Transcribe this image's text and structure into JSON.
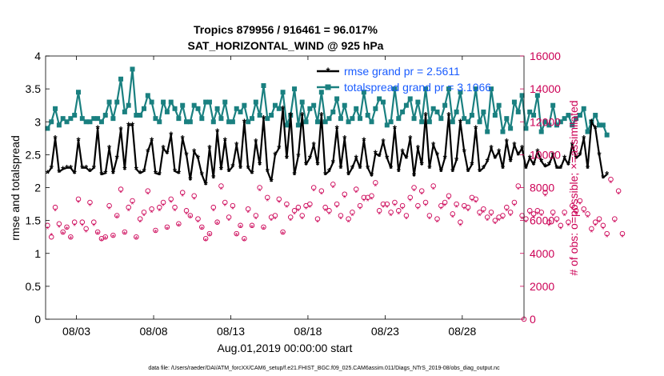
{
  "chart_data": {
    "type": "line",
    "title_line1": "Tropics 879956 / 916461 = 96.017%",
    "title_line2": "SAT_HORIZONTAL_WIND @ 925 hPa",
    "xlabel": "Aug.01,2019 00:00:00 start",
    "ylabel_left": "rmse and totalspread",
    "ylabel_right": "# of obs: o=possible; ×=assimilated",
    "footnote": "data file: /Users/raeder/DAI/ATM_forcXX/CAM6_setup/f.e21.FHIST_BGC.f09_025.CAM6assim.011/Diags_NTrS_2019-08/obs_diag_output.nc",
    "xlim": [
      0,
      31
    ],
    "ylim_left": [
      0,
      4
    ],
    "ylim_right": [
      0,
      16000
    ],
    "xtick_values": [
      2,
      7,
      12,
      17,
      22,
      27
    ],
    "xtick_labels": [
      "08/03",
      "08/08",
      "08/13",
      "08/18",
      "08/23",
      "08/28"
    ],
    "ytick_left": [
      "0",
      "0.5",
      "1",
      "1.5",
      "2",
      "2.5",
      "3",
      "3.5",
      "4"
    ],
    "ytick_right": [
      "0",
      "2000",
      "4000",
      "6000",
      "8000",
      "10000",
      "12000",
      "14000",
      "16000"
    ],
    "legend": [
      {
        "label": "rmse grand pr = 2.5611",
        "color": "#000000"
      },
      {
        "label": "totalspread grand pr = 3.1066",
        "color": "#1a8080"
      }
    ],
    "colors": {
      "rmse": "#000000",
      "spread": "#1a8080",
      "obs": "#cc0055",
      "legend_text": "#1a5cff"
    },
    "time_step_days": 0.25,
    "series": [
      {
        "name": "rmse",
        "values": [
          2.22,
          2.3,
          2.75,
          2.24,
          2.28,
          2.3,
          2.3,
          2.22,
          2.72,
          2.3,
          2.3,
          2.25,
          2.3,
          2.9,
          2.2,
          2.22,
          2.6,
          2.22,
          2.45,
          2.88,
          2.28,
          2.95,
          2.95,
          2.28,
          2.22,
          2.25,
          2.55,
          2.72,
          2.22,
          2.2,
          2.6,
          2.52,
          2.8,
          2.25,
          2.22,
          2.75,
          2.5,
          2.12,
          2.55,
          2.45,
          2.2,
          2.05,
          2.6,
          2.15,
          2.85,
          2.28,
          2.72,
          2.25,
          2.32,
          2.65,
          2.3,
          3.0,
          2.3,
          2.22,
          2.7,
          2.35,
          3.05,
          2.25,
          2.1,
          2.5,
          2.6,
          3.2,
          2.45,
          3.1,
          2.2,
          2.48,
          3.1,
          2.35,
          2.45,
          2.65,
          2.35,
          3.1,
          2.2,
          2.25,
          2.38,
          2.9,
          2.3,
          2.75,
          2.2,
          2.3,
          2.45,
          2.3,
          2.72,
          2.3,
          2.18,
          2.52,
          2.48,
          2.7,
          2.45,
          2.3,
          2.9,
          2.25,
          2.55,
          2.45,
          2.75,
          2.18,
          2.6,
          2.35,
          3.1,
          2.3,
          2.65,
          2.5,
          2.25,
          2.45,
          3.1,
          2.25,
          2.42,
          3.0,
          2.55,
          2.25,
          2.35,
          2.9,
          2.25,
          2.3,
          2.4,
          2.6,
          2.45,
          2.55,
          2.3,
          2.7,
          2.4,
          2.65,
          2.5,
          2.6,
          2.3,
          2.45,
          2.35,
          2.55,
          2.4,
          2.32,
          2.35,
          2.5,
          2.3,
          2.3,
          2.45,
          2.35,
          2.65,
          2.45,
          2.5,
          2.75,
          2.3,
          3.0,
          2.9,
          2.5,
          2.15,
          2.2
        ]
      },
      {
        "name": "totalspread",
        "values": [
          2.9,
          3.0,
          3.2,
          2.95,
          3.05,
          3.0,
          3.05,
          3.1,
          3.45,
          3.05,
          3.0,
          3.0,
          3.05,
          3.05,
          3.0,
          3.1,
          3.3,
          3.05,
          3.3,
          3.65,
          3.15,
          3.25,
          3.8,
          3.1,
          3.1,
          3.2,
          3.4,
          3.3,
          3.05,
          3.0,
          3.3,
          3.15,
          3.3,
          3.2,
          3.05,
          3.25,
          3.0,
          3.0,
          3.25,
          3.2,
          3.05,
          3.3,
          3.3,
          3.0,
          3.2,
          3.05,
          3.3,
          3.0,
          3.0,
          3.2,
          3.15,
          3.25,
          3.0,
          3.05,
          3.3,
          3.1,
          3.55,
          3.05,
          3.1,
          3.25,
          3.2,
          3.45,
          2.95,
          3.1,
          3.5,
          2.95,
          3.3,
          3.0,
          3.2,
          3.25,
          3.0,
          3.45,
          3.0,
          3.05,
          3.15,
          3.35,
          3.05,
          3.25,
          3.0,
          3.05,
          3.2,
          3.05,
          3.45,
          3.1,
          3.0,
          3.2,
          3.35,
          3.3,
          2.95,
          3.0,
          3.5,
          3.05,
          3.15,
          3.25,
          3.35,
          3.05,
          3.3,
          3.0,
          3.5,
          3.0,
          3.2,
          3.15,
          3.05,
          3.25,
          3.5,
          3.0,
          3.15,
          3.45,
          3.05,
          3.0,
          3.1,
          3.5,
          3.0,
          3.15,
          2.85,
          3.5,
          3.1,
          3.25,
          2.85,
          3.05,
          2.9,
          3.3,
          3.15,
          3.4,
          2.9,
          3.15,
          3.1,
          3.4,
          2.85,
          3.0,
          2.95,
          3.25,
          2.95,
          3.0,
          3.05,
          3.1,
          2.95,
          3.05,
          3.1,
          3.2,
          2.85,
          3.0,
          3.1,
          2.95,
          2.95,
          2.8
        ]
      },
      {
        "name": "obs_possible",
        "values": [
          5700,
          5000,
          6800,
          5800,
          5300,
          5600,
          5000,
          5900,
          7300,
          5900,
          5500,
          7100,
          5900,
          5300,
          4900,
          5000,
          6900,
          5100,
          6300,
          7900,
          5300,
          6800,
          7200,
          5000,
          6100,
          6500,
          7800,
          6700,
          5400,
          6800,
          7100,
          5600,
          7300,
          6800,
          5800,
          7700,
          6600,
          6300,
          7500,
          6100,
          5600,
          4900,
          5200,
          6800,
          5900,
          8100,
          7100,
          6200,
          6900,
          5200,
          5700,
          4900,
          6700,
          5700,
          6300,
          8000,
          5600,
          7400,
          6200,
          6300,
          7300,
          5300,
          7000,
          6200,
          6600,
          6800,
          6300,
          6900,
          7000,
          8000,
          6100,
          7800,
          6800,
          6600,
          8200,
          7000,
          6300,
          7600,
          6100,
          6500,
          7900,
          6900,
          7400,
          7400,
          7500,
          8300,
          6600,
          7000,
          7000,
          6500,
          7100,
          6600,
          6900,
          6300,
          7400,
          8000,
          6900,
          7800,
          7100,
          6300,
          8100,
          6100,
          6900,
          7100,
          7500,
          6400,
          7000,
          5900,
          6900,
          6800,
          7400,
          7300,
          6500,
          6700,
          6200,
          6500,
          6000,
          6200,
          6300,
          6800,
          6500,
          7100,
          8100,
          6300,
          6100,
          6600,
          6400,
          6600,
          6500,
          7700,
          5900,
          6500,
          6100,
          5700,
          6500,
          5900,
          6900,
          6600,
          7200,
          6700,
          6400,
          5500,
          5900,
          6100,
          5700,
          5200,
          8500,
          6100,
          7800,
          5200
        ]
      },
      {
        "name": "obs_assimilated",
        "values": [
          5500,
          5100,
          6600,
          5600,
          5200,
          5500,
          4900,
          5700,
          7100,
          5700,
          5300,
          6900,
          5700,
          5200,
          4800,
          4900,
          6700,
          5000,
          6200,
          7700,
          5200,
          6600,
          7000,
          4900,
          5900,
          6300,
          7600,
          6500,
          5300,
          6600,
          6900,
          5500,
          7100,
          6600,
          5700,
          7500,
          6400,
          6200,
          7300,
          5900,
          5500,
          4800,
          5100,
          6600,
          5800,
          7900,
          6900,
          6000,
          6700,
          5100,
          5600,
          4800,
          6500,
          5600,
          6100,
          7800,
          5500,
          7200,
          6000,
          6100,
          7100,
          5200,
          6800,
          6000,
          6400,
          6600,
          6100,
          6700,
          6800,
          7800,
          5900,
          7600,
          6600,
          6400,
          8000,
          6800,
          6100,
          7400,
          5900,
          6300,
          7700,
          6700,
          7200,
          7200,
          7300,
          8100,
          6400,
          6800,
          6800,
          6300,
          6900,
          6400,
          6700,
          6100,
          7200,
          7800,
          6700,
          7600,
          6900,
          6100,
          7900,
          5900,
          6700,
          6900,
          7300,
          6200,
          6800,
          5700,
          6700,
          6600,
          7200,
          7100,
          6300,
          6500,
          6000,
          6300,
          5800,
          6000,
          6100,
          6600,
          6300,
          6900,
          7900,
          6100,
          5900,
          6400,
          6200,
          6400,
          6300,
          7500,
          5700,
          6300,
          5900,
          5500,
          6300,
          5700,
          6700,
          6400,
          7000,
          6500,
          6200,
          5300,
          5700,
          5900,
          5500,
          5000,
          8300,
          5900,
          7600,
          5000
        ]
      }
    ]
  }
}
